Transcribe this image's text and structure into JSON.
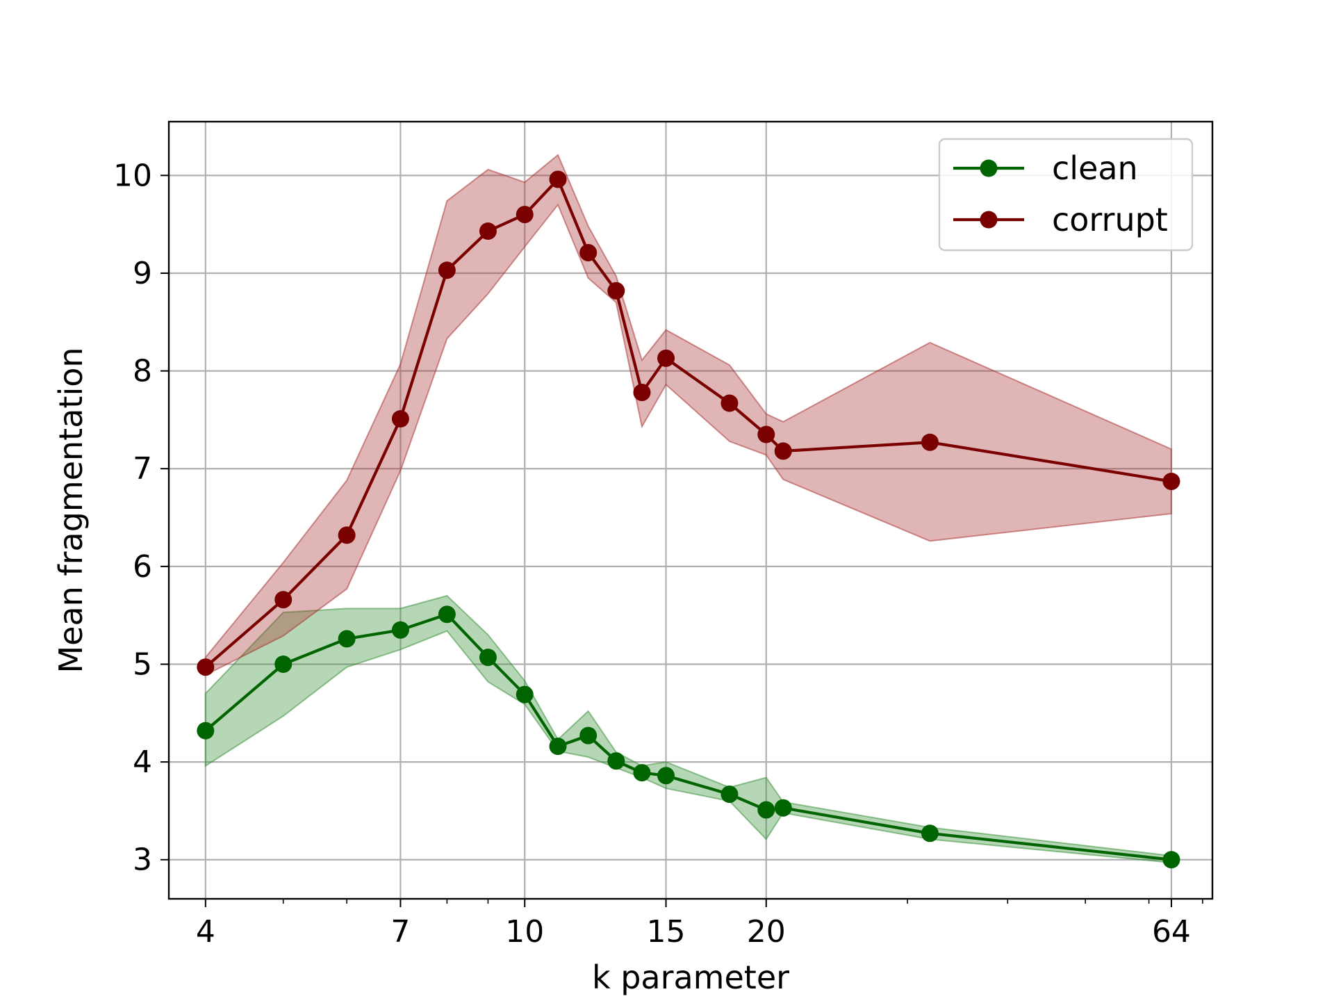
{
  "chart_data": {
    "type": "line",
    "xscale": "log",
    "xlabel": "k parameter",
    "ylabel": "Mean fragmentation",
    "xlim": [
      3.6,
      72
    ],
    "ylim": [
      2.6,
      10.55
    ],
    "xticks": [
      4,
      7,
      10,
      15,
      20,
      64
    ],
    "xtick_labels": [
      "4",
      "7",
      "10",
      "15",
      "20",
      "64"
    ],
    "yticks": [
      3,
      4,
      5,
      6,
      7,
      8,
      9,
      10
    ],
    "ytick_labels": [
      "3",
      "4",
      "5",
      "6",
      "7",
      "8",
      "9",
      "10"
    ],
    "grid": true,
    "legend_position": "upper-right",
    "series": [
      {
        "name": "clean",
        "color": "#006400",
        "band_color": "#2e8b2e",
        "points": [
          {
            "x": 4,
            "y": 4.32,
            "lo": 3.96,
            "hi": 4.7
          },
          {
            "x": 5,
            "y": 5.0,
            "lo": 4.47,
            "hi": 5.53
          },
          {
            "x": 6,
            "y": 5.26,
            "lo": 4.97,
            "hi": 5.57
          },
          {
            "x": 7,
            "y": 5.35,
            "lo": 5.15,
            "hi": 5.57
          },
          {
            "x": 8,
            "y": 5.51,
            "lo": 5.34,
            "hi": 5.7
          },
          {
            "x": 9,
            "y": 5.07,
            "lo": 4.82,
            "hi": 5.3
          },
          {
            "x": 10,
            "y": 4.69,
            "lo": 4.59,
            "hi": 4.83
          },
          {
            "x": 11,
            "y": 4.16,
            "lo": 4.11,
            "hi": 4.23
          },
          {
            "x": 12,
            "y": 4.27,
            "lo": 4.05,
            "hi": 4.52
          },
          {
            "x": 13,
            "y": 4.01,
            "lo": 3.94,
            "hi": 4.1
          },
          {
            "x": 14,
            "y": 3.89,
            "lo": 3.84,
            "hi": 3.96
          },
          {
            "x": 15,
            "y": 3.86,
            "lo": 3.73,
            "hi": 4.0
          },
          {
            "x": 18,
            "y": 3.67,
            "lo": 3.6,
            "hi": 3.74
          },
          {
            "x": 20,
            "y": 3.51,
            "lo": 3.21,
            "hi": 3.84
          },
          {
            "x": 21,
            "y": 3.53,
            "lo": 3.48,
            "hi": 3.59
          },
          {
            "x": 32,
            "y": 3.27,
            "lo": 3.21,
            "hi": 3.33
          },
          {
            "x": 64,
            "y": 3.0,
            "lo": 2.97,
            "hi": 3.04
          }
        ]
      },
      {
        "name": "corrupt",
        "color": "#7a0000",
        "band_color": "#a52a2a",
        "points": [
          {
            "x": 4,
            "y": 4.97,
            "lo": 4.89,
            "hi": 5.07
          },
          {
            "x": 5,
            "y": 5.66,
            "lo": 5.29,
            "hi": 6.04
          },
          {
            "x": 6,
            "y": 6.32,
            "lo": 5.77,
            "hi": 6.88
          },
          {
            "x": 7,
            "y": 7.51,
            "lo": 6.98,
            "hi": 8.07
          },
          {
            "x": 8,
            "y": 9.03,
            "lo": 8.33,
            "hi": 9.74
          },
          {
            "x": 9,
            "y": 9.43,
            "lo": 8.79,
            "hi": 10.06
          },
          {
            "x": 10,
            "y": 9.6,
            "lo": 9.27,
            "hi": 9.93
          },
          {
            "x": 11,
            "y": 9.96,
            "lo": 9.7,
            "hi": 10.21
          },
          {
            "x": 12,
            "y": 9.21,
            "lo": 8.95,
            "hi": 9.48
          },
          {
            "x": 13,
            "y": 8.82,
            "lo": 8.7,
            "hi": 8.97
          },
          {
            "x": 14,
            "y": 7.78,
            "lo": 7.43,
            "hi": 8.11
          },
          {
            "x": 15,
            "y": 8.13,
            "lo": 7.86,
            "hi": 8.42
          },
          {
            "x": 18,
            "y": 7.67,
            "lo": 7.28,
            "hi": 8.06
          },
          {
            "x": 20,
            "y": 7.35,
            "lo": 7.14,
            "hi": 7.56
          },
          {
            "x": 21,
            "y": 7.18,
            "lo": 6.89,
            "hi": 7.48
          },
          {
            "x": 32,
            "y": 7.27,
            "lo": 6.26,
            "hi": 8.29
          },
          {
            "x": 64,
            "y": 6.87,
            "lo": 6.54,
            "hi": 7.2
          }
        ]
      }
    ]
  }
}
